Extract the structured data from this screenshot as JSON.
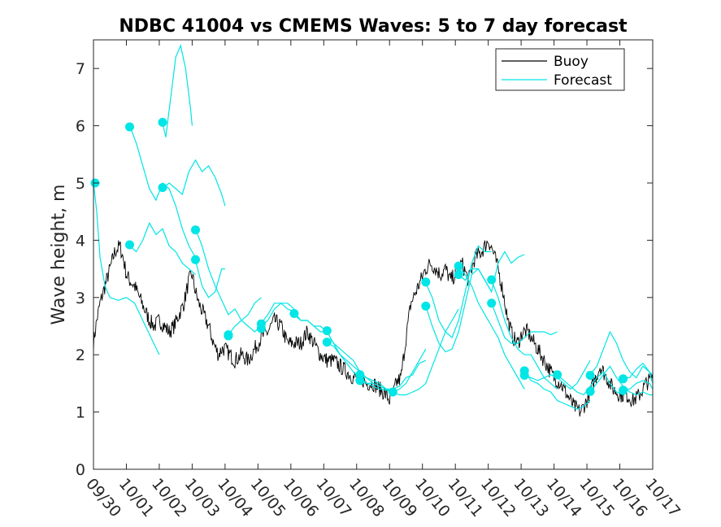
{
  "chart_data": {
    "type": "line",
    "title": "NDBC 41004 vs CMEMS Waves: 5 to 7 day forecast",
    "xlabel": "",
    "ylabel": "Wave height, m",
    "xlim": [
      0,
      17
    ],
    "ylim": [
      0,
      7.5
    ],
    "x_unit": "days since 09/30",
    "xticks": [
      0,
      1,
      2,
      3,
      4,
      5,
      6,
      7,
      8,
      9,
      10,
      11,
      12,
      13,
      14,
      15,
      16,
      17
    ],
    "xtick_labels": [
      "09/30",
      "10/01",
      "10/02",
      "10/03",
      "10/04",
      "10/05",
      "10/06",
      "10/07",
      "10/08",
      "10/09",
      "10/10",
      "10/11",
      "10/12",
      "10/13",
      "10/14",
      "10/15",
      "10/16",
      "10/17"
    ],
    "yticks": [
      0,
      1,
      2,
      3,
      4,
      5,
      6,
      7
    ],
    "ytick_labels": [
      "0",
      "1",
      "2",
      "3",
      "4",
      "5",
      "6",
      "7"
    ],
    "legend": {
      "position": "top-right",
      "entries": [
        {
          "name": "Buoy",
          "color": "#000000"
        },
        {
          "name": "Forecast",
          "color": "#00e5e5"
        }
      ]
    },
    "colors": {
      "buoy": "#000000",
      "forecast": "#00e5e5",
      "axis": "#262626"
    },
    "buoy": {
      "name": "Buoy",
      "x": [
        0,
        0.1,
        0.2,
        0.35,
        0.5,
        0.65,
        0.8,
        0.9,
        1.0,
        1.1,
        1.25,
        1.4,
        1.55,
        1.7,
        1.85,
        2.0,
        2.15,
        2.3,
        2.45,
        2.6,
        2.75,
        2.9,
        3.0,
        3.1,
        3.2,
        3.35,
        3.5,
        3.65,
        3.8,
        3.9,
        4.0,
        4.15,
        4.3,
        4.5,
        4.7,
        4.9,
        5.1,
        5.3,
        5.5,
        5.7,
        5.9,
        6.1,
        6.3,
        6.5,
        6.7,
        6.9,
        7.1,
        7.3,
        7.5,
        7.7,
        7.9,
        8.1,
        8.3,
        8.5,
        8.7,
        8.9,
        9.0,
        9.1,
        9.2,
        9.35,
        9.5,
        9.65,
        9.8,
        9.95,
        10.1,
        10.25,
        10.4,
        10.55,
        10.7,
        10.85,
        11.0,
        11.2,
        11.4,
        11.6,
        11.8,
        12.0,
        12.15,
        12.3,
        12.45,
        12.6,
        12.75,
        12.9,
        13.05,
        13.2,
        13.4,
        13.6,
        13.8,
        14.0,
        14.2,
        14.4,
        14.6,
        14.8,
        15.0,
        15.2,
        15.4,
        15.6,
        15.8,
        16.0,
        16.2,
        16.4,
        16.6,
        16.8,
        17.0
      ],
      "y": [
        2.2,
        2.6,
        2.9,
        3.2,
        3.5,
        3.8,
        3.9,
        3.7,
        3.4,
        3.3,
        3.2,
        3.0,
        2.8,
        2.6,
        2.5,
        2.6,
        2.5,
        2.4,
        2.5,
        2.7,
        2.9,
        3.3,
        3.4,
        3.1,
        2.9,
        2.7,
        2.5,
        2.2,
        2.0,
        2.1,
        2.1,
        2.0,
        1.9,
        2.0,
        1.9,
        2.1,
        2.3,
        2.4,
        2.6,
        2.5,
        2.2,
        2.2,
        2.2,
        2.4,
        2.2,
        2.0,
        1.9,
        1.9,
        1.8,
        1.7,
        1.6,
        1.6,
        1.5,
        1.5,
        1.4,
        1.3,
        1.2,
        1.3,
        1.5,
        1.6,
        2.3,
        2.9,
        3.1,
        3.3,
        3.5,
        3.6,
        3.5,
        3.4,
        3.5,
        3.3,
        3.4,
        3.6,
        3.3,
        3.7,
        3.8,
        4.0,
        3.8,
        3.5,
        3.1,
        2.6,
        2.3,
        2.2,
        2.4,
        2.4,
        2.2,
        2.0,
        1.8,
        1.6,
        1.5,
        1.3,
        1.1,
        1.0,
        1.2,
        1.5,
        1.8,
        1.6,
        1.4,
        1.3,
        1.3,
        1.2,
        1.3,
        1.5,
        1.6
      ]
    },
    "series": [
      {
        "name": "Forecast 09/30",
        "x": [
          0,
          0.1,
          0.2,
          0.35,
          0.5,
          0.75,
          1.0,
          1.25,
          1.5,
          1.75,
          2.0
        ],
        "y": [
          5.0,
          4.5,
          3.7,
          3.2,
          3.0,
          2.95,
          3.0,
          2.9,
          2.6,
          2.3,
          2.0
        ]
      },
      {
        "name": "Forecast 10/01a",
        "x": [
          1.1,
          1.3,
          1.5,
          1.7,
          1.9,
          2.1,
          2.3,
          2.5,
          2.7,
          2.9,
          3.1
        ],
        "y": [
          6.0,
          5.7,
          5.3,
          4.9,
          4.7,
          5.0,
          4.9,
          4.6,
          4.2,
          3.9,
          3.7
        ]
      },
      {
        "name": "Forecast 10/01b",
        "x": [
          1.1,
          1.3,
          1.5,
          1.7,
          1.9,
          2.1,
          2.3,
          2.5,
          2.7,
          2.9,
          3.1
        ],
        "y": [
          3.9,
          3.8,
          4.0,
          4.3,
          4.1,
          4.2,
          3.9,
          3.8,
          3.6,
          3.5,
          3.4
        ]
      },
      {
        "name": "Forecast 10/02a",
        "x": [
          2.1,
          2.2,
          2.35,
          2.5,
          2.65,
          2.8,
          2.95,
          3.0
        ],
        "y": [
          6.05,
          5.8,
          6.5,
          7.2,
          7.4,
          7.0,
          6.3,
          6.0
        ]
      },
      {
        "name": "Forecast 10/02b",
        "x": [
          2.1,
          2.3,
          2.5,
          2.7,
          2.9,
          3.1,
          3.3,
          3.5,
          3.7,
          3.9,
          4.0
        ],
        "y": [
          4.9,
          5.0,
          4.9,
          4.8,
          5.2,
          5.4,
          5.2,
          5.3,
          5.1,
          4.8,
          4.6
        ]
      },
      {
        "name": "Forecast 10/03a",
        "x": [
          3.1,
          3.3,
          3.5,
          3.7,
          3.9,
          4.1,
          4.3,
          4.5,
          4.7,
          4.9,
          5.1
        ],
        "y": [
          4.2,
          3.9,
          3.5,
          3.2,
          2.95,
          2.7,
          2.8,
          2.6,
          2.7,
          2.9,
          3.0
        ]
      },
      {
        "name": "Forecast 10/03b",
        "x": [
          3.1,
          3.3,
          3.5,
          3.7,
          3.9,
          4.0
        ],
        "y": [
          3.65,
          3.2,
          3.0,
          3.1,
          3.5,
          3.5
        ]
      },
      {
        "name": "Forecast 10/04",
        "x": [
          4.1,
          4.3,
          4.5,
          4.7,
          4.9,
          5.1,
          5.3,
          5.5,
          5.7,
          5.9,
          6.1
        ],
        "y": [
          2.35,
          2.5,
          2.6,
          2.5,
          2.4,
          2.5,
          2.6,
          2.8,
          2.9,
          2.9,
          2.8
        ]
      },
      {
        "name": "Forecast 10/05",
        "x": [
          5.1,
          5.3,
          5.5,
          5.7,
          5.9,
          6.1,
          6.3,
          6.5,
          6.7,
          6.9,
          7.1
        ],
        "y": [
          2.55,
          2.7,
          2.9,
          2.9,
          2.8,
          2.75,
          2.6,
          2.6,
          2.5,
          2.4,
          2.4
        ]
      },
      {
        "name": "Forecast 10/06",
        "x": [
          6.1,
          6.3,
          6.5,
          6.7,
          6.9,
          7.1,
          7.3,
          7.5,
          7.7,
          7.9,
          8.1
        ],
        "y": [
          2.7,
          2.6,
          2.6,
          2.5,
          2.5,
          2.4,
          2.2,
          2.0,
          1.9,
          1.8,
          1.7
        ]
      },
      {
        "name": "Forecast 10/07a",
        "x": [
          7.1,
          7.3,
          7.5,
          7.7,
          7.9,
          8.1,
          8.3,
          8.5,
          8.7,
          8.9,
          9.1
        ],
        "y": [
          2.4,
          2.2,
          2.1,
          2.0,
          1.9,
          1.7,
          1.6,
          1.55,
          1.5,
          1.4,
          1.35
        ]
      },
      {
        "name": "Forecast 10/07b",
        "x": [
          7.1,
          7.3,
          7.5,
          7.7,
          7.9,
          8.1,
          8.3,
          8.5,
          8.7,
          8.9,
          9.1
        ],
        "y": [
          2.2,
          2.15,
          2.0,
          1.85,
          1.7,
          1.6,
          1.5,
          1.45,
          1.4,
          1.38,
          1.35
        ]
      },
      {
        "name": "Forecast 10/08a",
        "x": [
          8.1,
          8.3,
          8.5,
          8.7,
          8.9,
          9.1,
          9.3,
          9.5,
          9.7,
          9.9,
          10.1
        ],
        "y": [
          1.65,
          1.6,
          1.5,
          1.45,
          1.4,
          1.35,
          1.4,
          1.5,
          1.7,
          1.9,
          2.1
        ]
      },
      {
        "name": "Forecast 10/08b",
        "x": [
          8.1,
          8.3,
          8.5,
          8.7,
          8.9,
          9.1,
          9.3,
          9.5,
          9.7,
          9.9,
          10.1
        ],
        "y": [
          1.55,
          1.5,
          1.5,
          1.45,
          1.4,
          1.4,
          1.45,
          1.6,
          1.65,
          1.85,
          1.9
        ]
      },
      {
        "name": "Forecast 10/09",
        "x": [
          9.1,
          9.3,
          9.5,
          9.7,
          9.9,
          10.1,
          10.3,
          10.5,
          10.7,
          10.9,
          11.1
        ],
        "y": [
          1.35,
          1.3,
          1.3,
          1.35,
          1.4,
          1.5,
          1.8,
          2.1,
          2.4,
          2.6,
          2.8
        ]
      },
      {
        "name": "Forecast 10/10a",
        "x": [
          10.1,
          10.3,
          10.5,
          10.7,
          10.9,
          11.1,
          11.3,
          11.5,
          11.7,
          11.9,
          12.1
        ],
        "y": [
          3.25,
          3.0,
          2.6,
          2.4,
          2.3,
          2.6,
          3.1,
          3.6,
          3.9,
          3.8,
          3.8
        ]
      },
      {
        "name": "Forecast 10/10b",
        "x": [
          10.1,
          10.3,
          10.5,
          10.7,
          10.9,
          11.1,
          11.3,
          11.5,
          11.7,
          11.9,
          12.1
        ],
        "y": [
          2.85,
          2.5,
          2.2,
          2.05,
          2.1,
          2.4,
          2.9,
          3.4,
          3.5,
          3.3,
          3.1
        ]
      },
      {
        "name": "Forecast 10/11a",
        "x": [
          11.1,
          11.3,
          11.5,
          11.7,
          11.9,
          12.1,
          12.3,
          12.5,
          12.7,
          12.9,
          13.1
        ],
        "y": [
          3.55,
          3.4,
          3.2,
          2.9,
          2.7,
          2.5,
          2.3,
          2.0,
          1.8,
          1.6,
          1.4
        ]
      },
      {
        "name": "Forecast 10/11b",
        "x": [
          11.1,
          11.3,
          11.5,
          11.7,
          11.9,
          12.1,
          12.3,
          12.5,
          12.7,
          12.9,
          13.1
        ],
        "y": [
          3.4,
          3.3,
          3.5,
          3.5,
          3.3,
          3.1,
          3.6,
          3.8,
          3.6,
          3.7,
          3.75
        ]
      },
      {
        "name": "Forecast 10/12a",
        "x": [
          12.1,
          12.3,
          12.5,
          12.7,
          12.9,
          13.1,
          13.3,
          13.5,
          13.7,
          13.9,
          14.1
        ],
        "y": [
          3.3,
          3.0,
          2.6,
          2.3,
          2.1,
          2.0,
          2.0,
          1.8,
          1.6,
          1.5,
          1.4
        ]
      },
      {
        "name": "Forecast 10/12b",
        "x": [
          12.1,
          12.3,
          12.5,
          12.7,
          12.9,
          13.1,
          13.3,
          13.5,
          13.7,
          13.9,
          14.1
        ],
        "y": [
          2.9,
          2.6,
          2.3,
          2.2,
          2.2,
          2.3,
          2.4,
          2.4,
          2.4,
          2.35,
          2.4
        ]
      },
      {
        "name": "Forecast 10/13a",
        "x": [
          13.1,
          13.3,
          13.5,
          13.7,
          13.9,
          14.1,
          14.3,
          14.5,
          14.7,
          14.9,
          15.1
        ],
        "y": [
          1.7,
          1.55,
          1.5,
          1.4,
          1.35,
          1.2,
          1.15,
          1.1,
          1.05,
          1.1,
          1.2
        ]
      },
      {
        "name": "Forecast 10/13b",
        "x": [
          13.1,
          13.3,
          13.5,
          13.7,
          13.9,
          14.1,
          14.3,
          14.5,
          14.7,
          14.9,
          15.1
        ],
        "y": [
          1.65,
          1.6,
          1.55,
          1.6,
          1.65,
          1.6,
          1.5,
          1.4,
          1.5,
          1.7,
          1.9
        ]
      },
      {
        "name": "Forecast 10/14",
        "x": [
          14.1,
          14.3,
          14.5,
          14.7,
          14.9,
          15.1,
          15.3,
          15.5,
          15.7,
          15.9,
          16.1
        ],
        "y": [
          1.65,
          1.55,
          1.45,
          1.35,
          1.3,
          1.45,
          1.6,
          1.7,
          1.5,
          1.35,
          1.3
        ]
      },
      {
        "name": "Forecast 10/15a",
        "x": [
          15.1,
          15.3,
          15.5,
          15.7,
          15.9,
          16.1,
          16.3,
          16.5,
          16.7,
          16.9,
          17.0
        ],
        "y": [
          1.65,
          1.8,
          2.1,
          2.4,
          2.2,
          1.9,
          1.7,
          1.6,
          1.8,
          1.7,
          1.65
        ]
      },
      {
        "name": "Forecast 10/15b",
        "x": [
          15.1,
          15.3,
          15.5,
          15.7,
          15.9,
          16.1,
          16.3,
          16.5,
          16.7,
          16.9,
          17.0
        ],
        "y": [
          1.35,
          1.5,
          1.65,
          1.8,
          1.6,
          1.45,
          1.35,
          1.3,
          1.35,
          1.3,
          1.3
        ]
      },
      {
        "name": "Forecast 10/16a",
        "x": [
          16.1,
          16.3,
          16.5,
          16.7,
          16.9,
          17.0
        ],
        "y": [
          1.6,
          1.6,
          1.75,
          1.85,
          1.7,
          1.5
        ]
      },
      {
        "name": "Forecast 10/16b",
        "x": [
          16.1,
          16.3,
          16.5,
          16.7,
          16.9,
          17.0
        ],
        "y": [
          1.4,
          1.4,
          1.5,
          1.55,
          1.5,
          1.4
        ]
      }
    ],
    "markers": [
      {
        "x": 0.05,
        "y": 5.0
      },
      {
        "x": 1.1,
        "y": 5.98
      },
      {
        "x": 1.1,
        "y": 3.92
      },
      {
        "x": 2.1,
        "y": 6.06
      },
      {
        "x": 2.1,
        "y": 4.92
      },
      {
        "x": 3.1,
        "y": 4.18
      },
      {
        "x": 3.1,
        "y": 3.66
      },
      {
        "x": 4.1,
        "y": 2.35
      },
      {
        "x": 4.1,
        "y": 2.33
      },
      {
        "x": 5.1,
        "y": 2.54
      },
      {
        "x": 5.1,
        "y": 2.46
      },
      {
        "x": 6.1,
        "y": 2.72
      },
      {
        "x": 7.1,
        "y": 2.42
      },
      {
        "x": 7.1,
        "y": 2.22
      },
      {
        "x": 8.1,
        "y": 1.65
      },
      {
        "x": 8.1,
        "y": 1.55
      },
      {
        "x": 9.1,
        "y": 1.35
      },
      {
        "x": 10.1,
        "y": 3.27
      },
      {
        "x": 10.1,
        "y": 2.85
      },
      {
        "x": 11.1,
        "y": 3.55
      },
      {
        "x": 11.1,
        "y": 3.4
      },
      {
        "x": 12.1,
        "y": 3.31
      },
      {
        "x": 12.1,
        "y": 2.9
      },
      {
        "x": 13.1,
        "y": 1.72
      },
      {
        "x": 13.1,
        "y": 1.64
      },
      {
        "x": 14.1,
        "y": 1.65
      },
      {
        "x": 15.1,
        "y": 1.64
      },
      {
        "x": 15.1,
        "y": 1.36
      },
      {
        "x": 16.1,
        "y": 1.58
      },
      {
        "x": 16.1,
        "y": 1.38
      }
    ]
  }
}
